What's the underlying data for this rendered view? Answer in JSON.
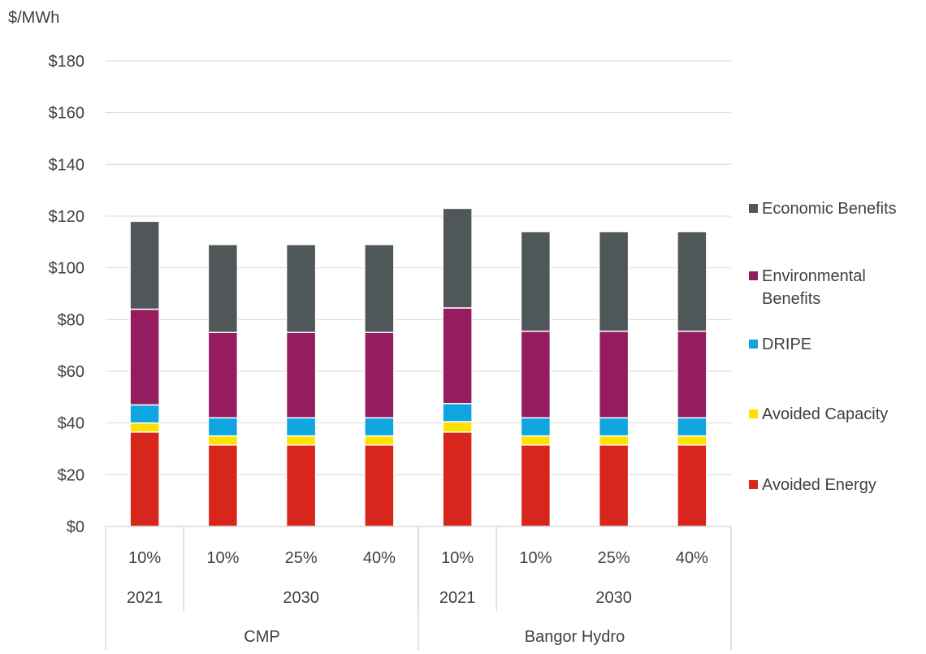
{
  "chart_data": {
    "type": "bar",
    "stacked": true,
    "ylabel": "$/MWh",
    "ylim": [
      0,
      180
    ],
    "yticks": [
      0,
      20,
      40,
      60,
      80,
      100,
      120,
      140,
      160,
      180
    ],
    "ytick_labels": [
      "$0",
      "$20",
      "$40",
      "$60",
      "$80",
      "$100",
      "$120",
      "$140",
      "$160",
      "$180"
    ],
    "grid": true,
    "legend_position": "right",
    "categories": [
      "10%",
      "10%",
      "25%",
      "40%",
      "10%",
      "10%",
      "25%",
      "40%"
    ],
    "year_groups": [
      {
        "label": "2021",
        "start": 0,
        "count": 1
      },
      {
        "label": "2030",
        "start": 1,
        "count": 3
      },
      {
        "label": "2021",
        "start": 4,
        "count": 1
      },
      {
        "label": "2030",
        "start": 5,
        "count": 3
      }
    ],
    "utility_groups": [
      {
        "label": "CMP",
        "start": 0,
        "count": 4
      },
      {
        "label": "Bangor Hydro",
        "start": 4,
        "count": 4
      }
    ],
    "series": [
      {
        "name": "Avoided Energy",
        "color": "#d9261c",
        "values": [
          36.5,
          31.5,
          31.5,
          31.5,
          36.5,
          31.5,
          31.5,
          31.5
        ]
      },
      {
        "name": "Avoided Capacity",
        "color": "#ffe100",
        "values": [
          3.5,
          3.5,
          3.5,
          3.5,
          4,
          3.5,
          3.5,
          3.5
        ]
      },
      {
        "name": "DRIPE",
        "color": "#0ea5e0",
        "values": [
          7,
          7,
          7,
          7,
          7,
          7,
          7,
          7
        ]
      },
      {
        "name": "Environmental Benefits",
        "color": "#951d5f",
        "values": [
          37,
          33,
          33,
          33,
          37,
          33.5,
          33.5,
          33.5
        ]
      },
      {
        "name": "Economic Benefits",
        "color": "#505759",
        "values": [
          34,
          34,
          34,
          34,
          38.5,
          38.5,
          38.5,
          38.5
        ]
      }
    ]
  }
}
